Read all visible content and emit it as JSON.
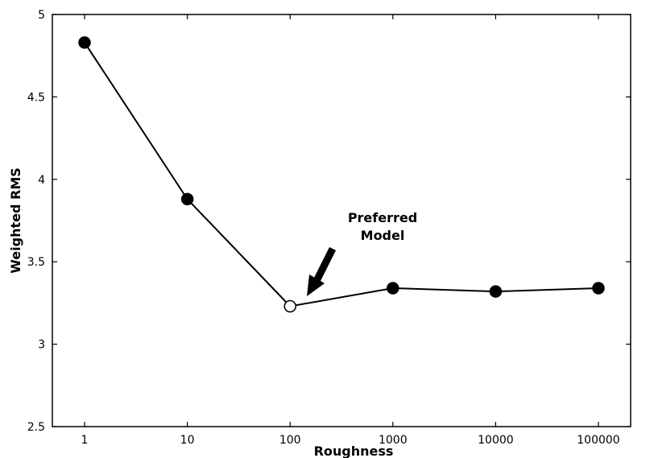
{
  "chart_data": {
    "type": "line",
    "xlabel": "Roughness",
    "ylabel": "Weighted RMS",
    "x_scale": "log",
    "x": [
      1,
      10,
      100,
      1000,
      10000,
      100000
    ],
    "x_tick_labels": [
      "1",
      "10",
      "100",
      "1000",
      "10000",
      "100000"
    ],
    "y_ticks": [
      2.5,
      3,
      3.5,
      4,
      4.5,
      5
    ],
    "y_tick_labels": [
      "2.5",
      "3",
      "3.5",
      "4",
      "4.5",
      "5"
    ],
    "ylim": [
      2.5,
      5
    ],
    "series": [
      {
        "values": [
          4.83,
          3.88,
          3.23,
          3.34,
          3.32,
          3.34
        ],
        "highlight_index": 2
      }
    ],
    "annotation": {
      "lines": [
        "Preferred",
        "Model"
      ],
      "x": 100,
      "y": 3.23
    },
    "grid": false,
    "colors": {
      "line": "#000000",
      "marker_fill": "#000000",
      "highlight_fill": "#ffffff"
    }
  }
}
